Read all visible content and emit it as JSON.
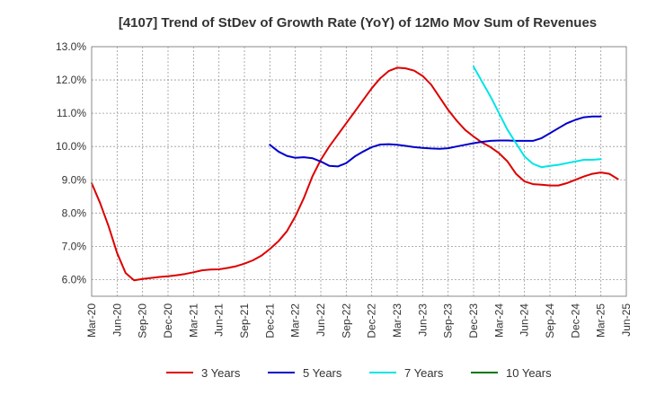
{
  "chart_data": {
    "type": "line",
    "title": "[4107]  Trend of StDev of Growth Rate (YoY) of 12Mo Mov Sum of Revenues",
    "xlabel": "",
    "ylabel": "",
    "ylim": [
      5.5,
      13.0
    ],
    "y_ticks": [
      6.0,
      7.0,
      8.0,
      9.0,
      10.0,
      11.0,
      12.0,
      13.0
    ],
    "y_tick_labels": [
      "6.0%",
      "7.0%",
      "8.0%",
      "9.0%",
      "10.0%",
      "11.0%",
      "12.0%",
      "13.0%"
    ],
    "x_tick_labels": [
      "Mar-20",
      "Jun-20",
      "Sep-20",
      "Dec-20",
      "Mar-21",
      "Jun-21",
      "Sep-21",
      "Dec-21",
      "Mar-22",
      "Jun-22",
      "Sep-22",
      "Dec-22",
      "Mar-23",
      "Jun-23",
      "Sep-23",
      "Dec-23",
      "Mar-24",
      "Jun-24",
      "Sep-24",
      "Dec-24",
      "Mar-25",
      "Jun-25"
    ],
    "x_range_months": [
      0,
      63
    ],
    "grid": true,
    "legend_position": "bottom",
    "series": [
      {
        "name": "3 Years",
        "color": "#dd0000",
        "start_month": 0,
        "values": [
          8.9,
          8.3,
          7.6,
          6.8,
          6.2,
          5.98,
          6.02,
          6.05,
          6.08,
          6.1,
          6.13,
          6.17,
          6.22,
          6.28,
          6.3,
          6.31,
          6.35,
          6.4,
          6.48,
          6.58,
          6.72,
          6.92,
          7.15,
          7.45,
          7.9,
          8.45,
          9.1,
          9.6,
          10.0,
          10.35,
          10.7,
          11.05,
          11.4,
          11.75,
          12.05,
          12.27,
          12.37,
          12.35,
          12.28,
          12.12,
          11.86,
          11.48,
          11.1,
          10.78,
          10.5,
          10.3,
          10.12,
          9.98,
          9.8,
          9.55,
          9.18,
          8.95,
          8.87,
          8.85,
          8.83,
          8.83,
          8.9,
          9.0,
          9.1,
          9.18,
          9.22,
          9.18,
          9.02
        ]
      },
      {
        "name": "5 Years",
        "color": "#0000cc",
        "start_month": 21,
        "values": [
          10.05,
          9.85,
          9.72,
          9.66,
          9.68,
          9.65,
          9.55,
          9.42,
          9.4,
          9.5,
          9.7,
          9.85,
          9.98,
          10.06,
          10.07,
          10.05,
          10.02,
          9.98,
          9.96,
          9.94,
          9.93,
          9.95,
          10.0,
          10.05,
          10.1,
          10.14,
          10.17,
          10.18,
          10.18,
          10.17,
          10.17,
          10.17,
          10.25,
          10.4,
          10.55,
          10.7,
          10.8,
          10.88,
          10.9,
          10.9
        ]
      },
      {
        "name": "7 Years",
        "color": "#00e5e5",
        "start_month": 45,
        "values": [
          12.4,
          11.95,
          11.5,
          11.0,
          10.5,
          10.1,
          9.7,
          9.48,
          9.38,
          9.42,
          9.45,
          9.5,
          9.55,
          9.6,
          9.6,
          9.62
        ]
      },
      {
        "name": "10 Years",
        "color": "#007700",
        "start_month": 0,
        "values": []
      }
    ]
  }
}
